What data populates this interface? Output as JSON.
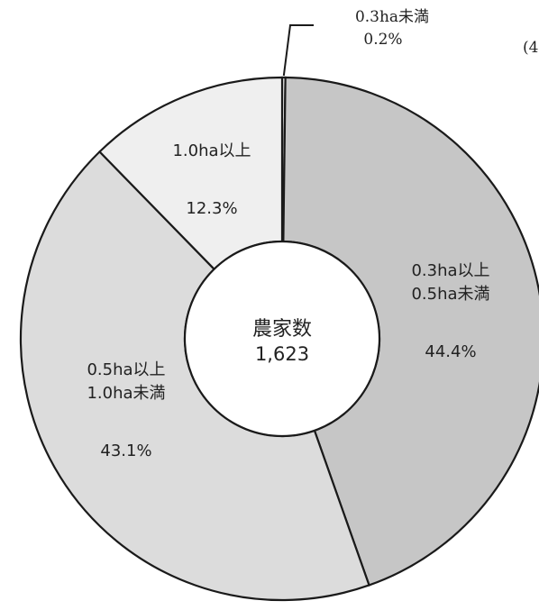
{
  "chart_data": {
    "type": "pie",
    "center": {
      "title": "農家数",
      "value": "1,623"
    },
    "slices": [
      {
        "label_lines": [
          "0.3ha未満"
        ],
        "pct_text": "0.2%",
        "value": 0.2,
        "fill": "#f2f2f2"
      },
      {
        "label_lines": [
          "0.3ha以上",
          "0.5ha未満"
        ],
        "pct_text": "44.4%",
        "value": 44.4,
        "fill": "#c6c6c6"
      },
      {
        "label_lines": [
          "0.5ha以上",
          "1.0ha未満"
        ],
        "pct_text": "43.1%",
        "value": 43.1,
        "fill": "#dcdcdc"
      },
      {
        "label_lines": [
          "1.0ha以上"
        ],
        "pct_text": "12.3%",
        "value": 12.3,
        "fill": "#efefef"
      }
    ],
    "corner_note": "(4"
  }
}
